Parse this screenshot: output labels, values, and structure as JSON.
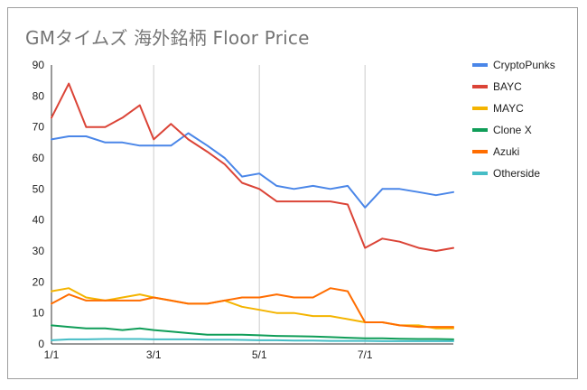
{
  "chart_data": {
    "type": "line",
    "title": "GMタイムズ 海外銘柄 Floor Price",
    "xlabel": "",
    "ylabel": "",
    "ylim": [
      0,
      90
    ],
    "yticks": [
      "0",
      "10",
      "20",
      "30",
      "40",
      "50",
      "60",
      "70",
      "80",
      "90"
    ],
    "xticks": [
      "1/1",
      "3/1",
      "5/1",
      "7/1"
    ],
    "x_domain": [
      "1/1",
      "8/21"
    ],
    "grid": "vertical lines at month ticks",
    "legend_position": "right",
    "x": [
      "1/1",
      "1/11",
      "1/21",
      "2/1",
      "2/11",
      "2/21",
      "3/1",
      "3/11",
      "3/21",
      "4/1",
      "4/11",
      "4/21",
      "5/1",
      "5/11",
      "5/21",
      "6/1",
      "6/11",
      "6/21",
      "7/1",
      "7/11",
      "7/21",
      "8/1",
      "8/11",
      "8/21"
    ],
    "series": [
      {
        "name": "CryptoPunks",
        "color": "#4a86e8",
        "values": [
          66,
          67,
          67,
          65,
          65,
          64,
          64,
          64,
          68,
          64,
          60,
          54,
          55,
          51,
          50,
          51,
          50,
          51,
          44,
          50,
          50,
          49,
          48,
          49
        ]
      },
      {
        "name": "BAYC",
        "color": "#db4437",
        "values": [
          73,
          84,
          70,
          70,
          73,
          77,
          66,
          71,
          66,
          62,
          58,
          52,
          50,
          46,
          46,
          46,
          46,
          45,
          31,
          34,
          33,
          31,
          30,
          31
        ]
      },
      {
        "name": "MAYC",
        "color": "#f4b400",
        "values": [
          17,
          18,
          15,
          14,
          15,
          16,
          15,
          14,
          13,
          13,
          14,
          12,
          11,
          10,
          10,
          9,
          9,
          8,
          7,
          7,
          6,
          6,
          5,
          5
        ]
      },
      {
        "name": "Clone X",
        "color": "#0f9d58",
        "values": [
          6,
          5.5,
          5,
          5,
          4.5,
          5,
          4.5,
          4,
          3.5,
          3,
          3,
          3,
          2.8,
          2.6,
          2.5,
          2.4,
          2.2,
          2,
          1.8,
          1.8,
          1.7,
          1.6,
          1.6,
          1.5
        ]
      },
      {
        "name": "Azuki",
        "color": "#ff6d00",
        "values": [
          13,
          16,
          14,
          14,
          14,
          14,
          15,
          14,
          13,
          13,
          14,
          15,
          15,
          16,
          15,
          15,
          18,
          17,
          7,
          7,
          6,
          5.5,
          5.5,
          5.5
        ]
      },
      {
        "name": "Otherside",
        "color": "#46bdc6",
        "values": [
          1.2,
          1.5,
          1.5,
          1.6,
          1.6,
          1.6,
          1.5,
          1.5,
          1.5,
          1.4,
          1.4,
          1.3,
          1.2,
          1.2,
          1.1,
          1.1,
          1.0,
          1.0,
          1.0,
          0.9,
          0.9,
          0.9,
          0.9,
          0.9
        ]
      }
    ]
  }
}
